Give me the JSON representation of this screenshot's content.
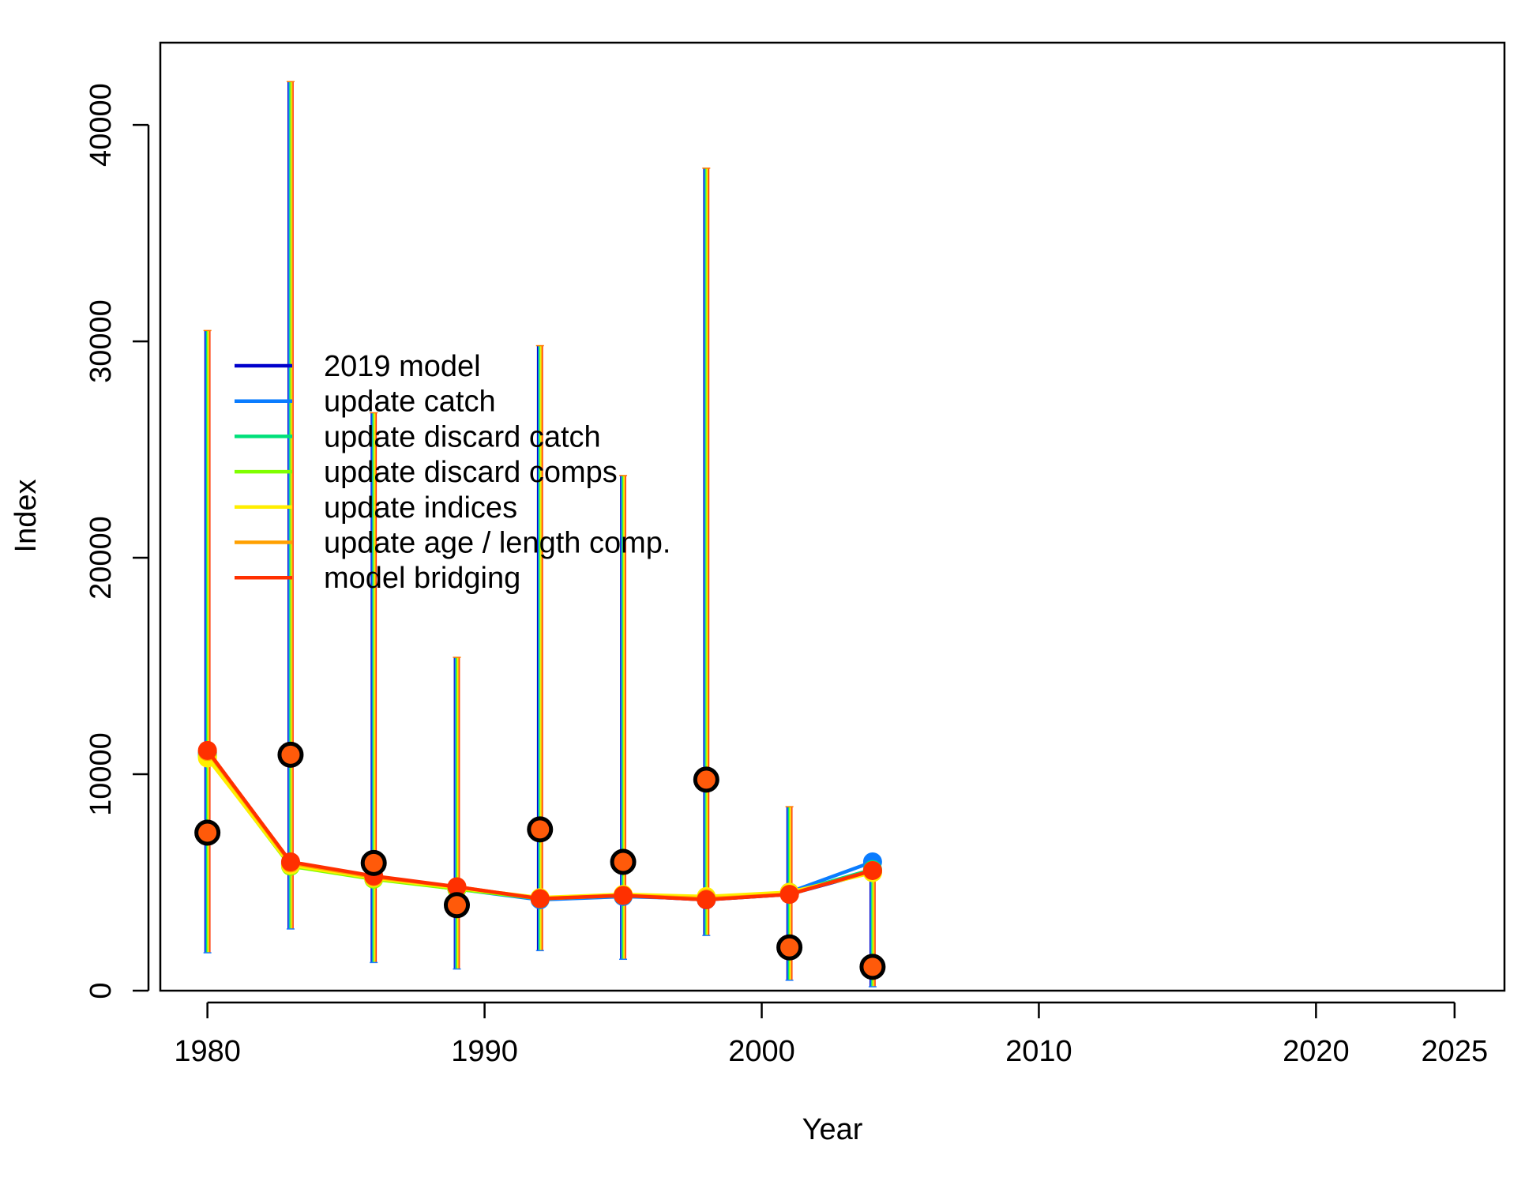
{
  "chart_data": {
    "type": "line",
    "title": "",
    "xlabel": "Year",
    "ylabel": "Index",
    "xlim": [
      1978.3,
      2026.8
    ],
    "ylim": [
      0,
      43800
    ],
    "x_ticks": [
      1980,
      1990,
      2000,
      2010,
      2020,
      2025
    ],
    "x_tick_labels": [
      "1980",
      "1990",
      "2000",
      "2010",
      "2020",
      "2025"
    ],
    "y_ticks": [
      0,
      10000,
      20000,
      30000,
      40000
    ],
    "y_tick_labels": [
      "0",
      "10000",
      "20000",
      "30000",
      "40000"
    ],
    "grid": false,
    "legend_position": "top-left",
    "observed": {
      "x": [
        1980,
        1983,
        1986,
        1989,
        1992,
        1995,
        1998,
        2001,
        2004
      ],
      "y": [
        7300,
        10900,
        5900,
        3950,
        7450,
        5950,
        9750,
        2000,
        1100
      ],
      "lower": [
        1750,
        2850,
        1300,
        1000,
        1850,
        1450,
        2550,
        480,
        180
      ],
      "upper": [
        30500,
        42000,
        26700,
        15400,
        29800,
        23800,
        38000,
        8500,
        5600
      ],
      "point_fill": "#ff5a0a",
      "point_edge": "#000000"
    },
    "series": [
      {
        "name": "2019 model",
        "color": "#0000cc",
        "y": [
          11000,
          5900,
          5250,
          4750,
          4250,
          4400,
          4200,
          4450,
          5500
        ]
      },
      {
        "name": "update catch",
        "color": "#0a7cff",
        "y": [
          10950,
          5850,
          5200,
          4700,
          4200,
          4350,
          4250,
          4550,
          5950
        ]
      },
      {
        "name": "update discard catch",
        "color": "#00e07a",
        "y": [
          10850,
          5800,
          5200,
          4700,
          4250,
          4400,
          4300,
          4500,
          5600
        ]
      },
      {
        "name": "update discard comps",
        "color": "#80ff00",
        "y": [
          10800,
          5750,
          5150,
          4700,
          4250,
          4400,
          4300,
          4500,
          5500
        ]
      },
      {
        "name": "update indices",
        "color": "#ffee00",
        "y": [
          10750,
          5800,
          5200,
          4750,
          4300,
          4450,
          4350,
          4550,
          5450
        ]
      },
      {
        "name": "update age / length comp.",
        "color": "#ffa000",
        "y": [
          11050,
          5900,
          5250,
          4800,
          4250,
          4400,
          4250,
          4450,
          5550
        ]
      },
      {
        "name": "model bridging",
        "color": "#ff3000",
        "y": [
          11100,
          5950,
          5300,
          4800,
          4250,
          4400,
          4200,
          4450,
          5550
        ]
      }
    ]
  }
}
